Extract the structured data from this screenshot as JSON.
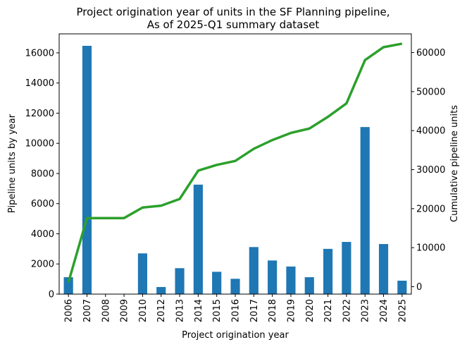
{
  "chart_data": {
    "type": "bar",
    "title": [
      "Project origination year of units in the SF Planning pipeline,",
      "As of 2025-Q1 summary dataset"
    ],
    "xlabel": "Project origination year",
    "ylabel": "Pipeline units by year",
    "y2label": "Cumulative pipeline units",
    "categories": [
      "2006",
      "2007",
      "2008",
      "2009",
      "2010",
      "2012",
      "2013",
      "2014",
      "2015",
      "2016",
      "2017",
      "2018",
      "2019",
      "2020",
      "2021",
      "2022",
      "2023",
      "2024",
      "2025"
    ],
    "series": [
      {
        "name": "Pipeline units by year",
        "type": "bar",
        "axis": "left",
        "color": "#1f77b4",
        "values": [
          1120,
          16466,
          0,
          0,
          2700,
          470,
          1720,
          7260,
          1480,
          1015,
          3120,
          2230,
          1830,
          1120,
          3000,
          3460,
          11080,
          3320,
          890
        ]
      },
      {
        "name": "Cumulative pipeline units",
        "type": "line",
        "axis": "right",
        "color": "#2ca02c",
        "values": [
          1120,
          17586,
          17586,
          17586,
          20286,
          20756,
          22476,
          29736,
          31216,
          32231,
          35351,
          37581,
          39411,
          40531,
          43531,
          46991,
          58071,
          61391,
          62281
        ]
      }
    ],
    "ylim": [
      0,
      17260
    ],
    "y2lim": [
      -1900,
      64800
    ],
    "yticks": [
      0,
      2000,
      4000,
      6000,
      8000,
      10000,
      12000,
      14000,
      16000
    ],
    "y2ticks": [
      0,
      10000,
      20000,
      30000,
      40000,
      50000,
      60000
    ],
    "grid": false
  }
}
